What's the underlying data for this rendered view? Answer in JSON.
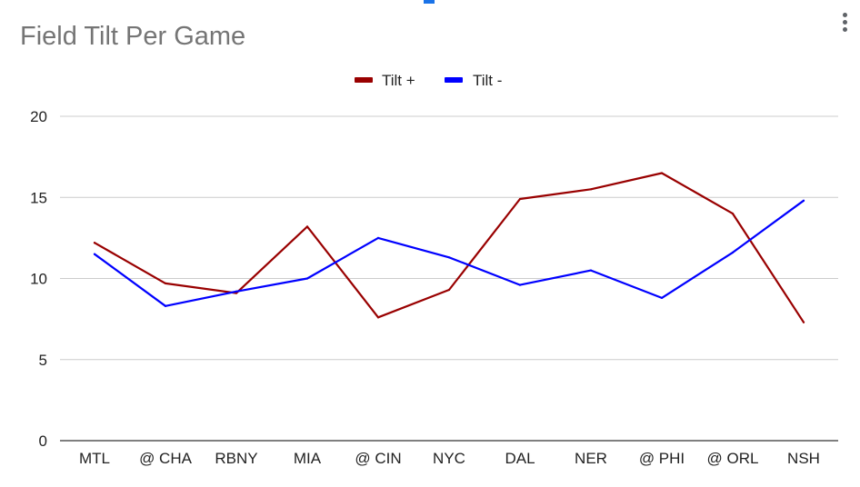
{
  "chart_data": {
    "type": "line",
    "title": "Field Tilt Per Game",
    "categories": [
      "MTL",
      "@ CHA",
      "RBNY",
      "MIA",
      "@ CIN",
      "NYC",
      "DAL",
      "NER",
      "@ PHI",
      "@ ORL",
      "NSH"
    ],
    "series": [
      {
        "name": "Tilt +",
        "color": "#990000",
        "values": [
          12.2,
          9.7,
          9.1,
          13.2,
          7.6,
          9.3,
          14.9,
          15.5,
          16.5,
          14.0,
          7.3
        ]
      },
      {
        "name": "Tilt -",
        "color": "#0000ff",
        "values": [
          11.5,
          8.3,
          9.2,
          10.0,
          12.5,
          11.3,
          9.6,
          10.5,
          8.8,
          11.6,
          14.8
        ]
      }
    ],
    "ylim": [
      0,
      20
    ],
    "yticks": [
      "0",
      "5",
      "10",
      "15",
      "20"
    ],
    "grid": true,
    "legend_position": "top"
  },
  "ui": {
    "menu_icon": "more-vert-icon",
    "gridline_color": "#cccccc",
    "baseline_color": "#333333"
  }
}
